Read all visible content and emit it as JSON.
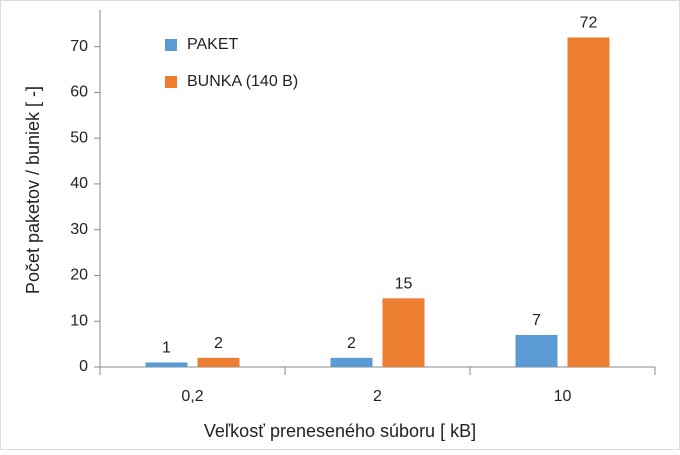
{
  "chart_data": {
    "type": "bar",
    "categories": [
      "0,2",
      "2",
      "10"
    ],
    "series": [
      {
        "name": "PAKET",
        "color": "#5b9bd5",
        "values": [
          1,
          2,
          7
        ]
      },
      {
        "name": "BUNKA (140 B)",
        "color": "#ed7d31",
        "values": [
          2,
          15,
          72
        ]
      }
    ],
    "xlabel": "Veľkosť preneseného súboru [ kB]",
    "ylabel": "Počet paketov / buniek [ -]",
    "ylim": [
      0,
      78
    ],
    "yticks": [
      0,
      10,
      20,
      30,
      40,
      50,
      60,
      70
    ],
    "grid": false,
    "legend": "top-left"
  }
}
